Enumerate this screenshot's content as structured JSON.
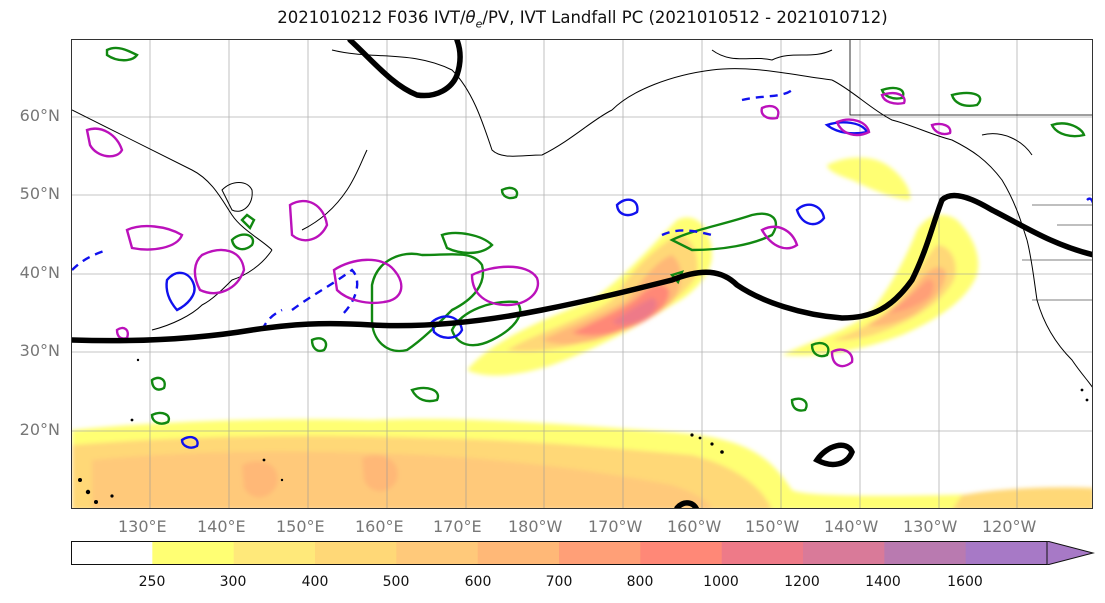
{
  "title": {
    "prefix": "2021010212 F036 IVT/",
    "theta": "θ",
    "sub": "e",
    "suffix": "/PV, IVT Landfall PC (2021010512 - 2021010712)"
  },
  "map": {
    "lat_labels": [
      "60°N",
      "50°N",
      "40°N",
      "30°N",
      "20°N"
    ],
    "lon_labels": [
      "130°E",
      "140°E",
      "150°E",
      "160°E",
      "170°E",
      "180°W",
      "170°W",
      "160°W",
      "150°W",
      "140°W",
      "130°W",
      "120°W"
    ],
    "colors": {
      "coast": "#000000",
      "jet_contour": "#000000",
      "pv_green": "#118811",
      "pv_blue": "#1111ee",
      "pv_magenta": "#bb11bb"
    }
  },
  "colorbar": {
    "levels": [
      "250",
      "300",
      "400",
      "500",
      "600",
      "700",
      "800",
      "1000",
      "1200",
      "1400",
      "1600"
    ],
    "fill_colors": [
      "#ffffff",
      "#ffff73",
      "#ffe97a",
      "#ffd877",
      "#ffc97a",
      "#ffb877",
      "#ff9f77",
      "#ff8877",
      "#ee7a88",
      "#d97a99",
      "#b97ab0",
      "#a779c6"
    ]
  }
}
